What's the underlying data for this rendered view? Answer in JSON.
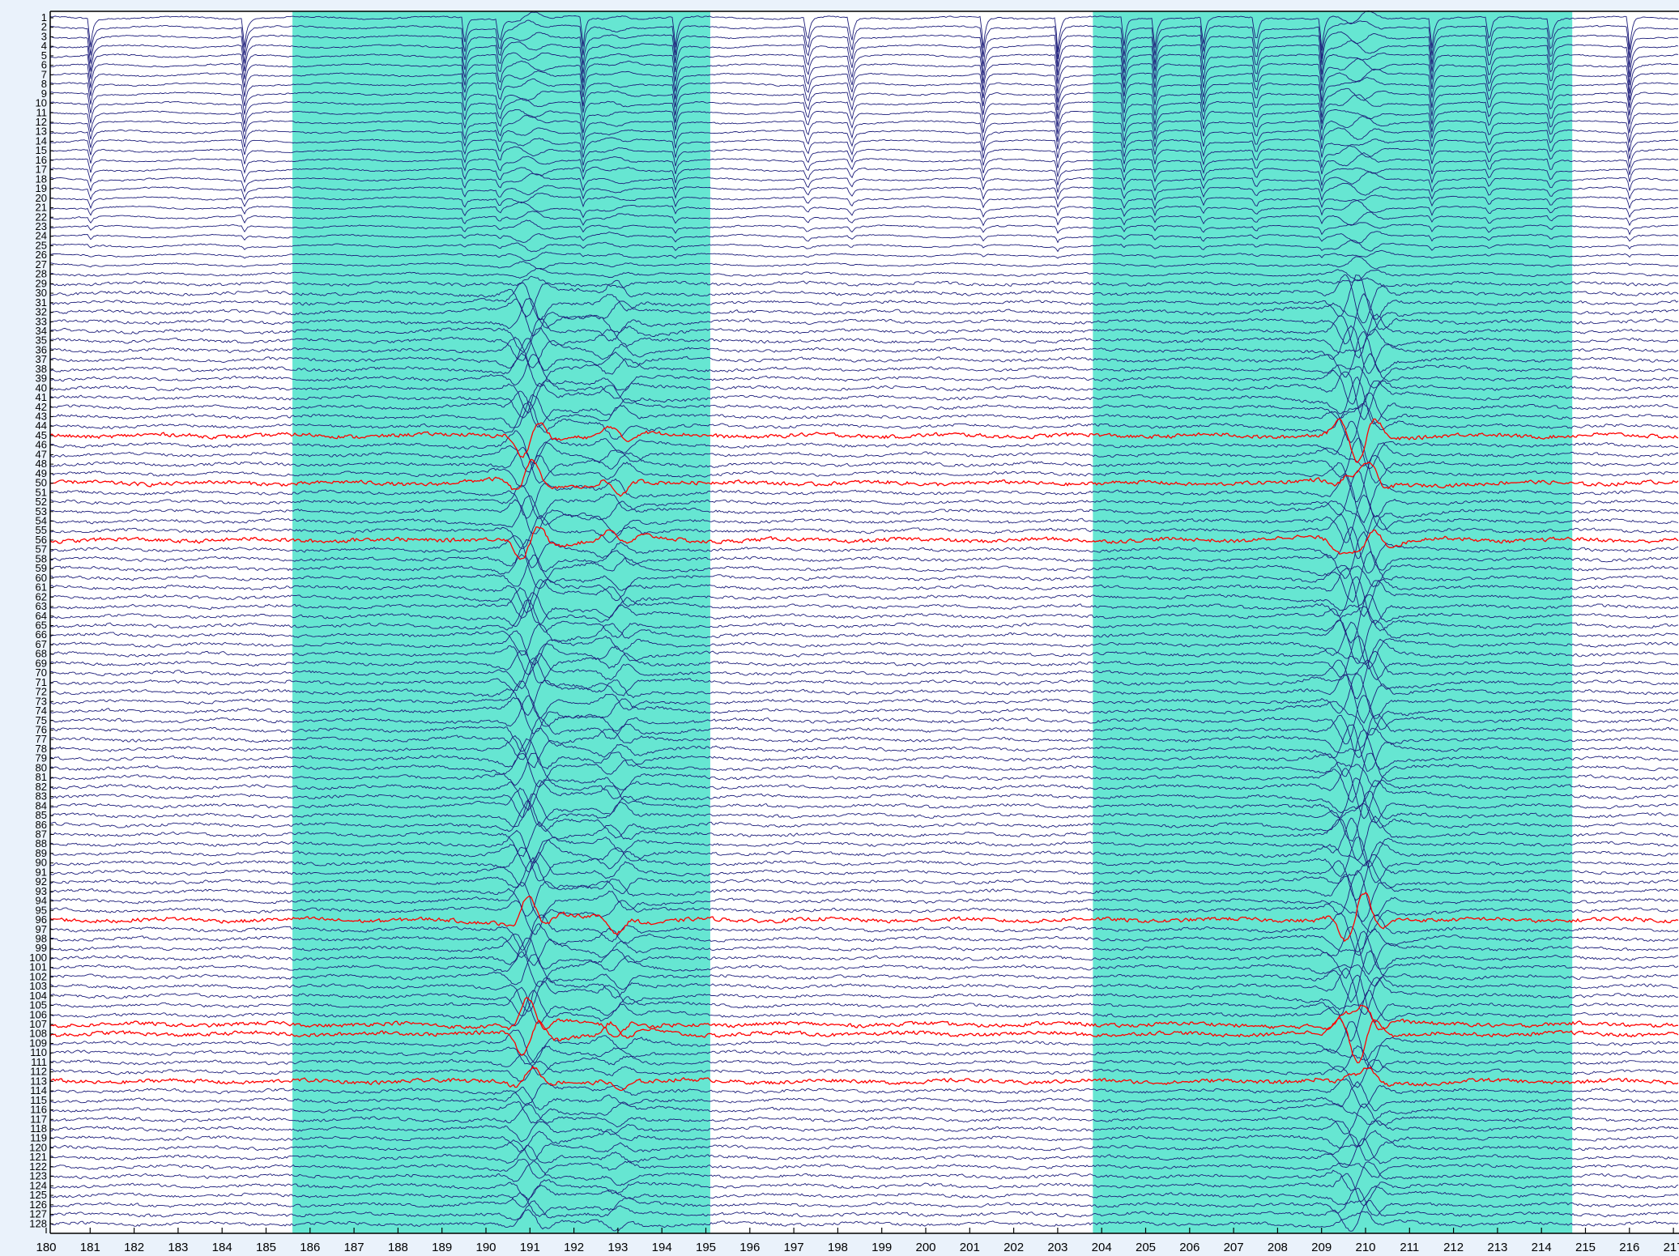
{
  "chart_data": {
    "type": "line",
    "title": "",
    "xlabel": "",
    "ylabel": "",
    "xlim": [
      180,
      217
    ],
    "x_ticks": [
      180,
      181,
      182,
      183,
      184,
      185,
      186,
      187,
      188,
      189,
      190,
      191,
      192,
      193,
      194,
      195,
      196,
      197,
      198,
      199,
      200,
      201,
      202,
      203,
      204,
      205,
      206,
      207,
      208,
      209,
      210,
      211,
      212,
      213,
      214,
      215,
      216,
      217
    ],
    "x_tick_labels": [
      "180",
      "181",
      "182",
      "183",
      "184",
      "185",
      "186",
      "187",
      "188",
      "189",
      "190",
      "191",
      "192",
      "193",
      "194",
      "195",
      "196",
      "197",
      "198",
      "199",
      "200",
      "201",
      "202",
      "203",
      "204",
      "205",
      "206",
      "207",
      "208",
      "209",
      "210",
      "211",
      "212",
      "213",
      "214",
      "215",
      "216",
      "217"
    ],
    "channel_count": 128,
    "channel_labels": [
      "1",
      "2",
      "3",
      "4",
      "5",
      "6",
      "7",
      "8",
      "9",
      "10",
      "11",
      "12",
      "13",
      "14",
      "15",
      "16",
      "17",
      "18",
      "19",
      "20",
      "21",
      "22",
      "23",
      "24",
      "25",
      "26",
      "27",
      "28",
      "29",
      "30",
      "31",
      "32",
      "33",
      "34",
      "35",
      "36",
      "37",
      "38",
      "39",
      "40",
      "41",
      "42",
      "43",
      "44",
      "45",
      "46",
      "47",
      "48",
      "49",
      "50",
      "51",
      "52",
      "53",
      "54",
      "55",
      "56",
      "57",
      "58",
      "59",
      "60",
      "61",
      "62",
      "63",
      "64",
      "65",
      "66",
      "67",
      "68",
      "69",
      "70",
      "71",
      "72",
      "73",
      "74",
      "75",
      "76",
      "77",
      "78",
      "79",
      "80",
      "81",
      "82",
      "83",
      "84",
      "85",
      "86",
      "87",
      "88",
      "89",
      "90",
      "91",
      "92",
      "93",
      "94",
      "95",
      "96",
      "97",
      "98",
      "99",
      "100",
      "101",
      "102",
      "103",
      "104",
      "105",
      "106",
      "107",
      "108",
      "109",
      "110",
      "111",
      "112",
      "113",
      "114",
      "115",
      "116",
      "117",
      "118",
      "119",
      "120",
      "121",
      "122",
      "123",
      "124",
      "125",
      "126",
      "127",
      "128"
    ],
    "highlighted_channels": [
      45,
      50,
      56,
      96,
      107,
      108,
      113
    ],
    "shaded_intervals": [
      {
        "start": 185.6,
        "end": 195.1
      },
      {
        "start": 203.8,
        "end": 214.7
      }
    ],
    "events": [
      {
        "time": 191.0,
        "amplitude": 3.5
      },
      {
        "time": 193.0,
        "amplitude": 1.6
      },
      {
        "time": 209.6,
        "amplitude": 2.2
      },
      {
        "time": 210.0,
        "amplitude": 3.5
      }
    ],
    "frontal_spikes": [
      181.0,
      184.5,
      189.5,
      190.3,
      192.2,
      194.3,
      197.3,
      198.3,
      201.3,
      203.0,
      204.5,
      205.2,
      206.3,
      207.5,
      209.0,
      211.5,
      212.8,
      214.2,
      216.0
    ],
    "colors": {
      "trace": "#1d1d7a",
      "highlight": "#ff0000",
      "shade": "#66e6d2",
      "plot_background": "#ffffff",
      "frame": "#000000",
      "page_background": "#eaf2fb"
    },
    "grid": false,
    "legend": "none"
  }
}
